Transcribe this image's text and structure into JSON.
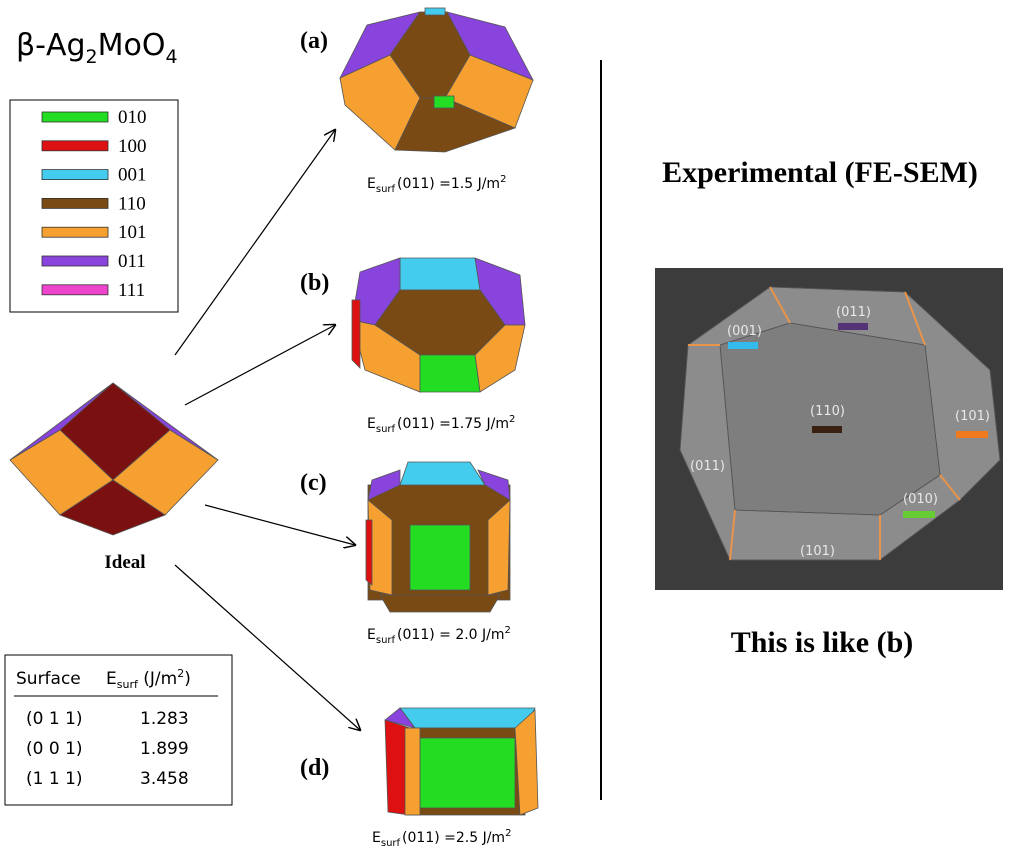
{
  "title": {
    "main": "β-Ag",
    "sub1": "2",
    "mid": "MoO",
    "sub2": "4"
  },
  "legend": [
    {
      "label": "010",
      "color": "#22dd22"
    },
    {
      "label": "100",
      "color": "#dd1111"
    },
    {
      "label": "001",
      "color": "#44ccee"
    },
    {
      "label": "110",
      "color": "#7a4a14"
    },
    {
      "label": "101",
      "color": "#f5a030"
    },
    {
      "label": "011",
      "color": "#8844dd"
    },
    {
      "label": "111",
      "color": "#ee44cc"
    }
  ],
  "ideal_label": "Ideal",
  "shapes": [
    {
      "tag": "(a)",
      "caption": {
        "e": "E",
        "sub": "surf",
        "text": "(011) =1.5 J/m",
        "sup": "2"
      }
    },
    {
      "tag": "(b)",
      "caption": {
        "e": "E",
        "sub": "surf",
        "text": "(011) =1.75 J/m",
        "sup": "2"
      }
    },
    {
      "tag": "(c)",
      "caption": {
        "e": "E",
        "sub": "surf",
        "text": "(011) = 2.0 J/m",
        "sup": "2"
      }
    },
    {
      "tag": "(d)",
      "caption": {
        "e": "E",
        "sub": "surf",
        "text": "(011) =2.5 J/m",
        "sup": "2"
      }
    }
  ],
  "table": {
    "header": {
      "surface": "Surface",
      "e": "E",
      "sub": "surf",
      "unit": " (J/m",
      "sup": "2",
      "close": ")"
    },
    "rows": [
      [
        "(0 1 1)",
        "1.283"
      ],
      [
        "(0 0 1)",
        "1.899"
      ],
      [
        "(1 1 1)",
        "3.458"
      ]
    ]
  },
  "experimental": {
    "title": "Experimental (FE-SEM)",
    "note": "This is like (b)",
    "labels": [
      "(001)",
      "(011)",
      "(110)",
      "(101)",
      "(011)",
      "(010)",
      "(101)"
    ]
  }
}
